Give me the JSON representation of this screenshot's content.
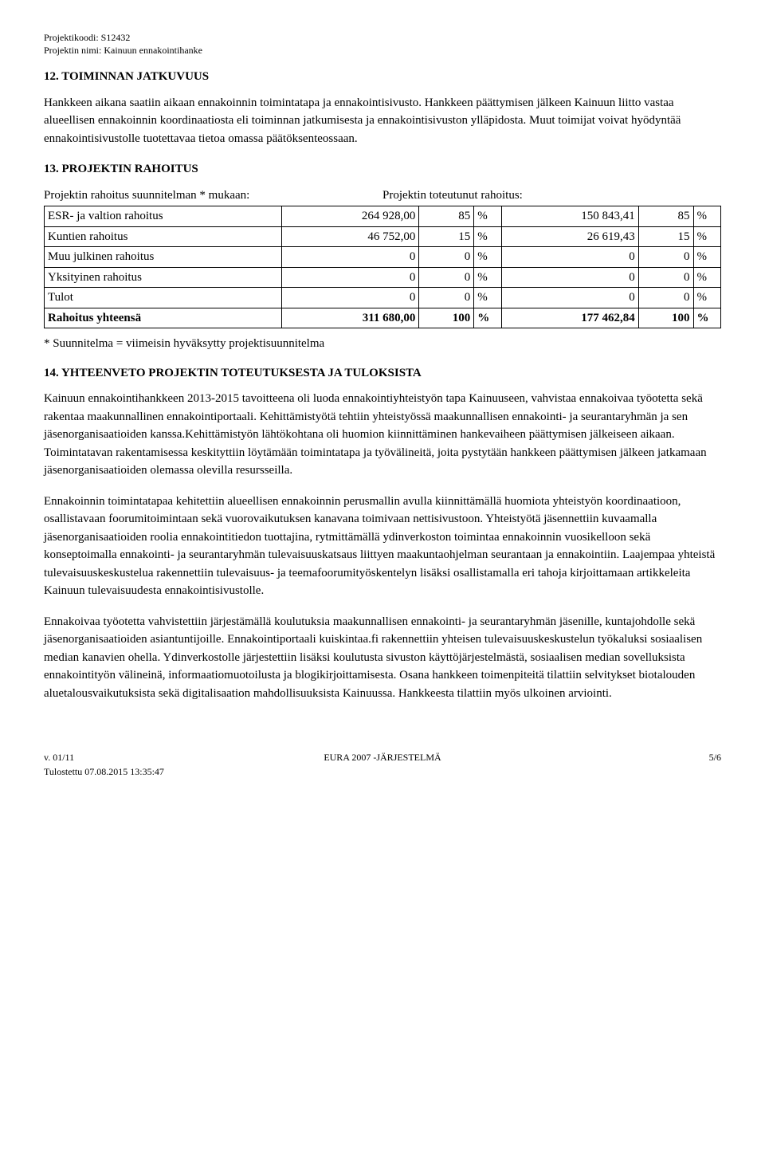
{
  "header": {
    "line1": "Projektikoodi: S12432",
    "line2": "Projektin nimi: Kainuun ennakointihanke"
  },
  "sect12": {
    "title": "12. TOIMINNAN JATKUVUUS",
    "para": "Hankkeen aikana saatiin aikaan ennakoinnin toimintatapa ja ennakointisivusto. Hankkeen päättymisen jälkeen Kainuun liitto vastaa alueellisen ennakoinnin koordinaatiosta eli toiminnan jatkumisesta ja ennakointisivuston ylläpidosta. Muut toimijat voivat hyödyntää ennakointisivustolle tuotettavaa tietoa omassa päätöksenteossaan."
  },
  "sect13": {
    "title": "13. PROJEKTIN RAHOITUS",
    "col_left_label": "Projektin rahoitus suunnitelman * mukaan:",
    "col_right_label": "Projektin toteutunut rahoitus:",
    "pct_symbol": "%",
    "rows": [
      {
        "label": "ESR- ja valtion rahoitus",
        "a1": "264 928,00",
        "p1": "85",
        "a2": "150 843,41",
        "p2": "85"
      },
      {
        "label": "Kuntien rahoitus",
        "a1": "46 752,00",
        "p1": "15",
        "a2": "26 619,43",
        "p2": "15"
      },
      {
        "label": "Muu julkinen rahoitus",
        "a1": "0",
        "p1": "0",
        "a2": "0",
        "p2": "0"
      },
      {
        "label": "Yksityinen rahoitus",
        "a1": "0",
        "p1": "0",
        "a2": "0",
        "p2": "0"
      },
      {
        "label": "Tulot",
        "a1": "0",
        "p1": "0",
        "a2": "0",
        "p2": "0"
      }
    ],
    "total": {
      "label": "Rahoitus yhteensä",
      "a1": "311 680,00",
      "p1": "100",
      "a2": "177 462,84",
      "p2": "100"
    },
    "footnote": "* Suunnitelma = viimeisin hyväksytty projektisuunnitelma"
  },
  "sect14": {
    "title": "14. YHTEENVETO PROJEKTIN TOTEUTUKSESTA JA TULOKSISTA",
    "p1": "Kainuun ennakointihankkeen 2013-2015 tavoitteena oli luoda ennakointiyhteistyön tapa Kainuuseen, vahvistaa ennakoivaa työotetta sekä rakentaa maakunnallinen ennakointiportaali. Kehittämistyötä tehtiin yhteistyössä maakunnallisen ennakointi- ja seurantaryhmän ja sen jäsenorganisaatioiden kanssa.Kehittämistyön lähtökohtana oli huomion kiinnittäminen hankevaiheen päättymisen jälkeiseen aikaan. Toimintatavan rakentamisessa keskityttiin löytämään toimintatapa ja työvälineitä, joita pystytään hankkeen päättymisen jälkeen jatkamaan jäsenorganisaatioiden olemassa olevilla resursseilla.",
    "p2": "Ennakoinnin toimintatapaa kehitettiin alueellisen ennakoinnin perusmallin avulla kiinnittämällä huomiota yhteistyön koordinaatioon, osallistavaan foorumitoimintaan sekä vuorovaikutuksen kanavana toimivaan nettisivustoon. Yhteistyötä jäsennettiin kuvaamalla jäsenorganisaatioiden roolia ennakointitiedon tuottajina, rytmittämällä ydinverkoston toimintaa ennakoinnin vuosikelloon sekä konseptoimalla ennakointi- ja seurantaryhmän tulevaisuuskatsaus liittyen maakuntaohjelman seurantaan ja ennakointiin. Laajempaa yhteistä tulevaisuuskeskustelua rakennettiin tulevaisuus- ja teemafoorumityöskentelyn lisäksi osallistamalla eri tahoja kirjoittamaan artikkeleita Kainuun tulevaisuudesta ennakointisivustolle.",
    "p3": "Ennakoivaa työotetta vahvistettiin järjestämällä koulutuksia maakunnallisen ennakointi- ja seurantaryhmän jäsenille, kuntajohdolle sekä jäsenorganisaatioiden asiantuntijoille. Ennakointiportaali kuiskintaa.fi rakennettiin yhteisen tulevaisuuskeskustelun työkaluksi sosiaalisen median kanavien ohella. Ydinverkostolle järjestettiin lisäksi koulutusta sivuston käyttöjärjestelmästä, sosiaalisen median sovelluksista ennakointityön välineinä, informaatiomuotoilusta ja blogikirjoittamisesta. Osana hankkeen toimenpiteitä tilattiin selvitykset biotalouden aluetalousvaikutuksista sekä digitalisaation mahdollisuuksista Kainuussa. Hankkeesta tilattiin myös ulkoinen arviointi."
  },
  "footer": {
    "left_line1": "v. 01/11",
    "left_line2": "Tulostettu 07.08.2015 13:35:47",
    "center": "EURA 2007 -JÄRJESTELMÄ",
    "right": "5/6"
  }
}
